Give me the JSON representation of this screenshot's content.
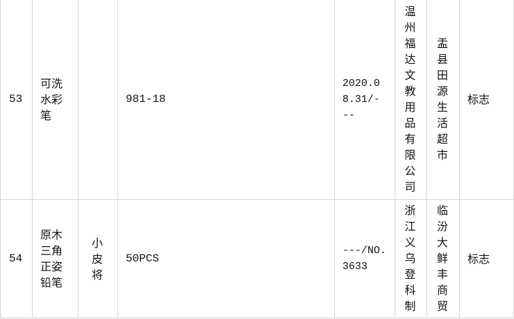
{
  "rows": [
    {
      "no": "53",
      "product": "可洗水彩笔",
      "brand": "",
      "spec": "981-18",
      "date_batch": "2020.08.31/---",
      "manufacturer": "温州福达文教用品有限公司",
      "seller": "盂县田源生活超市",
      "issue": "标志"
    },
    {
      "no": "54",
      "product": "原木三角正姿铅笔",
      "brand": "小皮将",
      "spec": "50PCS",
      "date_batch": "---/NO.3633",
      "manufacturer": "浙江义乌登科制",
      "seller": "临汾大鲜丰商贸",
      "issue": "标志"
    }
  ]
}
